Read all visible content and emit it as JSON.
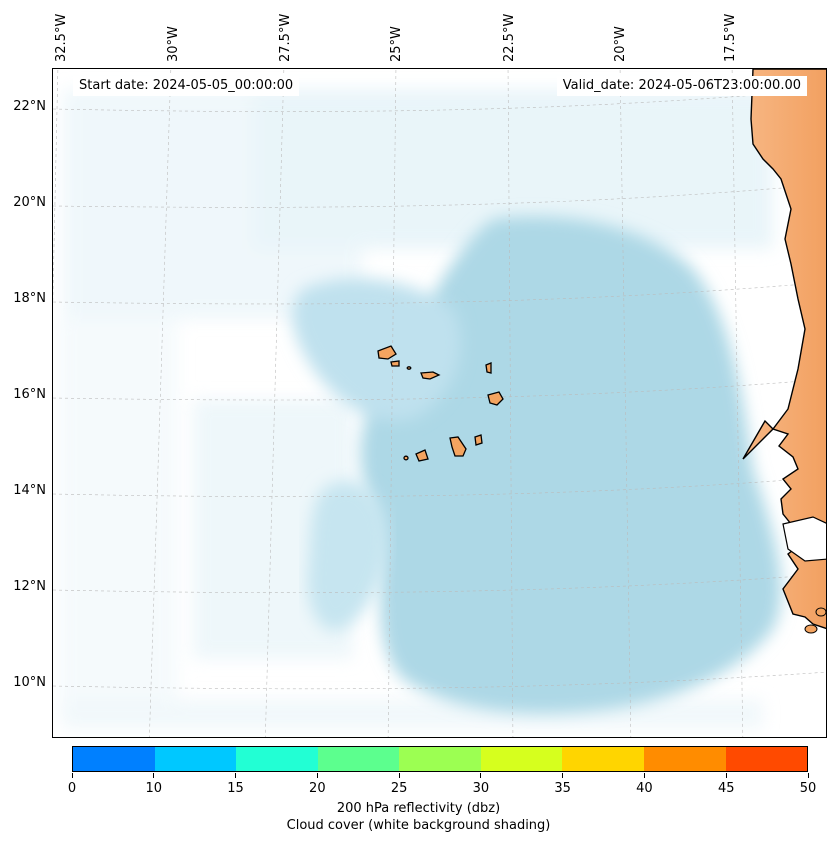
{
  "map": {
    "start_date": "Start date: 2024-05-05_00:00:00",
    "valid_date": "Valid_date: 2024-05-06T23:00:00.00",
    "lon_labels": [
      "32.5°W",
      "30°W",
      "27.5°W",
      "25°W",
      "22.5°W",
      "20°W",
      "17.5°W"
    ],
    "lat_labels": [
      "22°N",
      "20°N",
      "18°N",
      "16°N",
      "14°N",
      "12°N",
      "10°N"
    ],
    "colors": {
      "cloud": "#add8e6",
      "land": "#f4a460",
      "coast": "#000000"
    }
  },
  "colorbar": {
    "ticks": [
      "0",
      "10",
      "15",
      "20",
      "25",
      "30",
      "35",
      "40",
      "45",
      "50"
    ],
    "colors": [
      "#0080ff",
      "#00c8ff",
      "#22ffd4",
      "#5cff8e",
      "#9cff52",
      "#d6ff1e",
      "#ffd500",
      "#ff8c00",
      "#ff4a00"
    ],
    "label": "200 hPa reflectivity (dbz)",
    "sublabel": "Cloud cover (white background shading)"
  }
}
